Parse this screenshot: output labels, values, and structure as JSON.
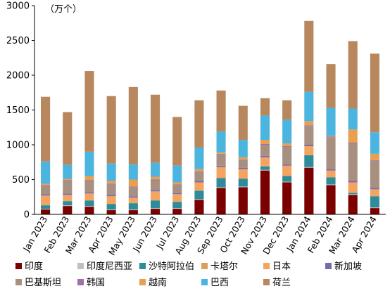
{
  "chart_data": {
    "type": "bar",
    "stacked": true,
    "unit": "（万个）",
    "ylim": [
      0,
      3000
    ],
    "yticks": [
      0,
      500,
      1000,
      1500,
      2000,
      2500,
      3000
    ],
    "grid": false,
    "legend_position": "bottom",
    "categories": [
      "Jan 2023",
      "Feb 2023",
      "Mar 2023",
      "Apr 2023",
      "May 2023",
      "Jun 2023",
      "Jul 2023",
      "Aug 2023",
      "Sep 2023",
      "Oct 2023",
      "Nov 2023",
      "Dec 2023",
      "Jan 2024",
      "Feb 2024",
      "Mar 2024",
      "Apr 2024"
    ],
    "series": [
      {
        "name": "印度",
        "color": "#7B0000",
        "values": [
          70,
          120,
          110,
          60,
          60,
          80,
          80,
          210,
          380,
          390,
          630,
          460,
          670,
          420,
          280,
          90
        ]
      },
      {
        "name": "印度尼西亚",
        "color": "#BFBFBF",
        "values": [
          10,
          10,
          10,
          10,
          10,
          10,
          10,
          10,
          10,
          10,
          10,
          10,
          10,
          10,
          10,
          10
        ]
      },
      {
        "name": "沙特阿拉伯",
        "color": "#2E8B99",
        "values": [
          50,
          60,
          80,
          80,
          90,
          110,
          90,
          120,
          130,
          110,
          50,
          80,
          170,
          100,
          20,
          160
        ]
      },
      {
        "name": "卡塔尔",
        "color": "#D9A05A",
        "values": [
          10,
          10,
          10,
          10,
          10,
          10,
          10,
          10,
          10,
          10,
          10,
          10,
          10,
          10,
          10,
          10
        ]
      },
      {
        "name": "日本",
        "color": "#F4A460",
        "values": [
          130,
          80,
          90,
          100,
          70,
          120,
          100,
          110,
          150,
          130,
          120,
          140,
          120,
          90,
          140,
          90
        ]
      },
      {
        "name": "新加坡",
        "color": "#7B6AA8",
        "values": [
          20,
          20,
          20,
          20,
          20,
          20,
          20,
          20,
          20,
          20,
          20,
          20,
          20,
          20,
          20,
          20
        ]
      },
      {
        "name": "巴基斯坦",
        "color": "#A89080",
        "values": [
          120,
          180,
          160,
          150,
          130,
          140,
          110,
          130,
          160,
          110,
          160,
          250,
          270,
          460,
          540,
          390
        ]
      },
      {
        "name": "韩国",
        "color": "#9E6FA9",
        "values": [
          10,
          10,
          10,
          10,
          10,
          10,
          10,
          10,
          10,
          10,
          10,
          10,
          10,
          10,
          10,
          10
        ]
      },
      {
        "name": "越南",
        "color": "#E8A050",
        "values": [
          20,
          20,
          60,
          40,
          100,
          40,
          30,
          30,
          20,
          30,
          60,
          40,
          60,
          10,
          190,
          90
        ]
      },
      {
        "name": "巴西",
        "color": "#4BB5E0",
        "values": [
          320,
          200,
          350,
          250,
          220,
          200,
          240,
          310,
          300,
          250,
          350,
          340,
          420,
          400,
          300,
          310
        ]
      },
      {
        "name": "荷兰",
        "color": "#B8875E",
        "values": [
          930,
          760,
          1160,
          970,
          1110,
          980,
          700,
          680,
          590,
          490,
          250,
          280,
          1020,
          630,
          970,
          1130
        ]
      }
    ]
  }
}
